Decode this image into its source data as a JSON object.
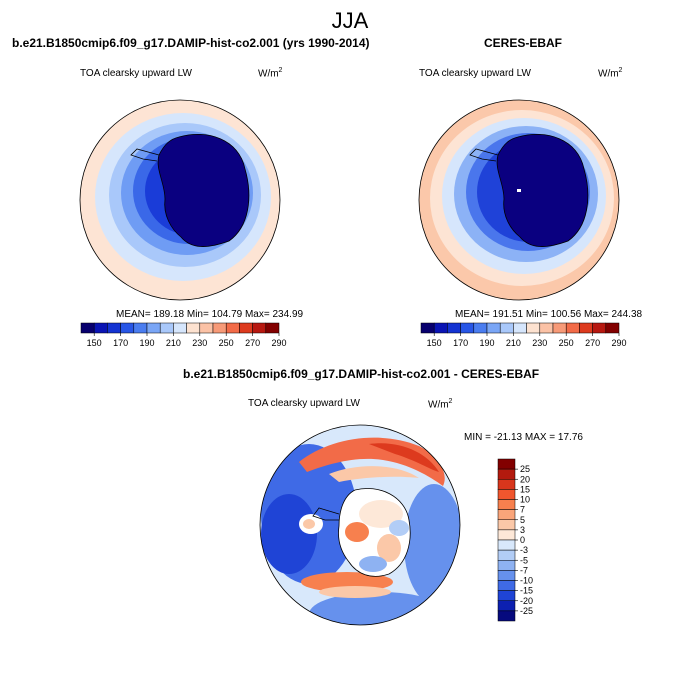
{
  "season": "JJA",
  "panels": [
    {
      "title": "b.e21.B1850cmip6.f09_g17.DAMIP-hist-co2.001 (yrs 1990-2014)",
      "left_label": "TOA clearsky upward LW",
      "units_base": "W/m",
      "units_exp": "2",
      "stats": "MEAN= 189.18  Min= 104.79  Max= 234.99"
    },
    {
      "title": "CERES-EBAF",
      "left_label": "TOA clearsky upward LW",
      "units_base": "W/m",
      "units_exp": "2",
      "stats": "MEAN= 191.51  Min= 100.56  Max= 244.38"
    }
  ],
  "diff_panel": {
    "title": "b.e21.B1850cmip6.f09_g17.DAMIP-hist-co2.001 - CERES-EBAF",
    "left_label": "TOA clearsky upward LW",
    "units_base": "W/m",
    "units_exp": "2",
    "stats": "MIN = -21.13 MAX =  17.76"
  },
  "chart_data": [
    {
      "type": "heatmap",
      "projection": "south-polar-stereographic",
      "variable": "TOA clearsky upward LW",
      "units": "W/m2",
      "mean": 189.18,
      "min": 104.79,
      "max": 234.99,
      "colorbar": {
        "tick_labels": [
          "150",
          "170",
          "190",
          "210",
          "230",
          "250",
          "270",
          "290"
        ],
        "colors": [
          "#08006e",
          "#0a14b4",
          "#1433d2",
          "#2856e6",
          "#4a7df0",
          "#7aa6f6",
          "#a9c8fa",
          "#d6e6fc",
          "#fde2d0",
          "#fbc2a6",
          "#f79a78",
          "#f26b48",
          "#dd3a1e",
          "#b71810",
          "#820000"
        ]
      }
    },
    {
      "type": "heatmap",
      "projection": "south-polar-stereographic",
      "variable": "TOA clearsky upward LW",
      "units": "W/m2",
      "mean": 191.51,
      "min": 100.56,
      "max": 244.38,
      "colorbar": {
        "tick_labels": [
          "150",
          "170",
          "190",
          "210",
          "230",
          "250",
          "270",
          "290"
        ],
        "colors": [
          "#08006e",
          "#0a14b4",
          "#1433d2",
          "#2856e6",
          "#4a7df0",
          "#7aa6f6",
          "#a9c8fa",
          "#d6e6fc",
          "#fde2d0",
          "#fbc2a6",
          "#f79a78",
          "#f26b48",
          "#dd3a1e",
          "#b71810",
          "#820000"
        ]
      }
    },
    {
      "type": "heatmap",
      "projection": "south-polar-stereographic",
      "variable": "TOA clearsky upward LW difference",
      "units": "W/m2",
      "min": -21.13,
      "max": 17.76,
      "colorbar": {
        "tick_labels": [
          "25",
          "20",
          "15",
          "10",
          "7",
          "5",
          "3",
          "0",
          "-3",
          "-5",
          "-7",
          "-10",
          "-15",
          "-20",
          "-25"
        ],
        "colors": [
          "#820000",
          "#b31a0e",
          "#d8361c",
          "#f0562e",
          "#f7804e",
          "#faa57a",
          "#fbc8a8",
          "#fde8d8",
          "#d8e8fb",
          "#b2cdf6",
          "#8eb2f2",
          "#6691ed",
          "#3f6ae6",
          "#1f44d6",
          "#0c20b0",
          "#060a7e"
        ]
      }
    }
  ]
}
